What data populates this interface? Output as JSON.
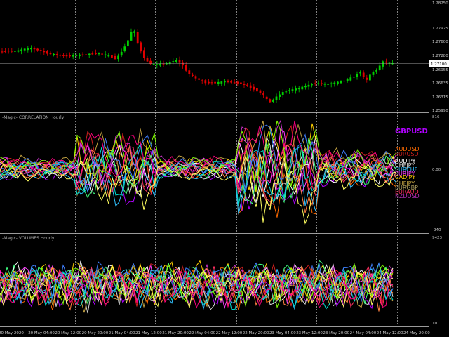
{
  "colors": {
    "background": "#000000",
    "grid": "#b8b8b8",
    "bull": "#00d000",
    "bear": "#e00000",
    "price_line": "#a0a0a0"
  },
  "price_pane": {
    "price_axis_labels": [
      "1.28250",
      "1.27925",
      "1.27600",
      "1.27280",
      "1.26955",
      "1.26635",
      "1.26315",
      "1.25990"
    ],
    "current_price": "1.27100"
  },
  "correlation_pane": {
    "title": "-Magic- CORRELATION Hourly",
    "axis_labels": [
      "816",
      "0.00",
      "-940"
    ],
    "symbols": [
      {
        "name": "GBPUSD",
        "color": "#b000ff"
      },
      {
        "name": "AUDUSD",
        "color": "#ff6a00"
      },
      {
        "name": "EURUSD",
        "color": "#d02020"
      },
      {
        "name": "AUDJPY",
        "color": "#ffffff"
      },
      {
        "name": "CHFJPY",
        "color": "#d8d8d8"
      },
      {
        "name": "EURCHF",
        "color": "#30c0ff"
      },
      {
        "name": "EURJPY",
        "color": "#ff40ff"
      },
      {
        "name": "CADJPY",
        "color": "#ffd000"
      },
      {
        "name": "CHFJPY",
        "color": "#c0a040"
      },
      {
        "name": "EURGBP",
        "color": "#b0a060"
      },
      {
        "name": "EURAUD",
        "color": "#ff3060"
      },
      {
        "name": "NZDUSD",
        "color": "#c030c0"
      }
    ]
  },
  "volumes_pane": {
    "title": "-Magic- VOLUMES Hourly",
    "axis_labels": [
      "9423",
      "10"
    ]
  },
  "time_axis": [
    "20 May 2020",
    "20 May 04:00",
    "20 May 12:00",
    "20 May 20:00",
    "21 May 04:00",
    "21 May 12:00",
    "21 May 20:00",
    "22 May 04:00",
    "22 May 12:00",
    "22 May 20:00",
    "23 May 04:00",
    "23 May 12:00",
    "23 May 20:00",
    "24 May 04:00",
    "24 May 12:00",
    "24 May 20:00"
  ]
}
